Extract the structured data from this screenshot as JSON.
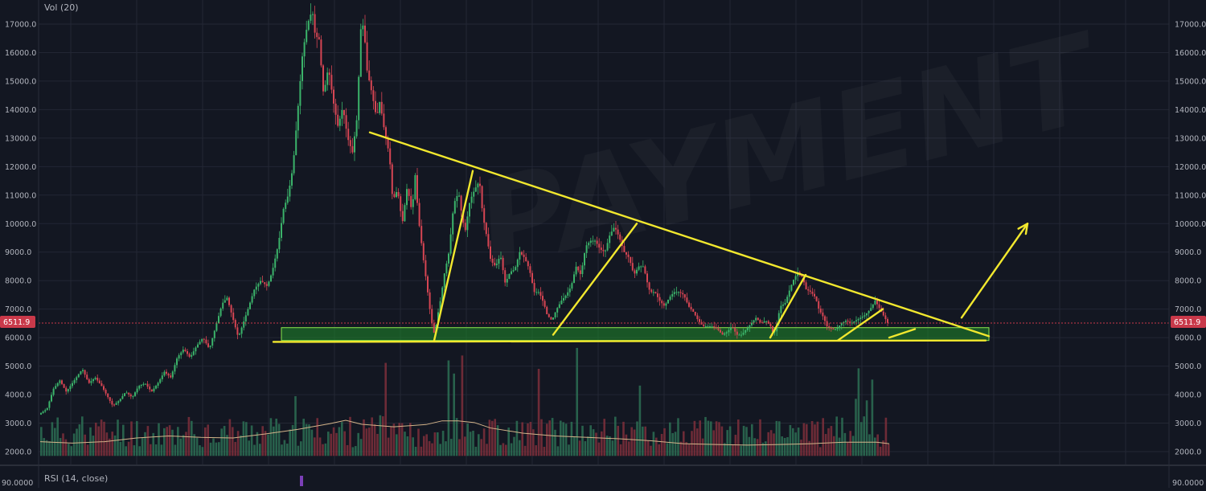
{
  "pane_labels": {
    "volume": "Vol (20)",
    "rsi": "RSI (14, close)"
  },
  "price_axis": {
    "ticks": [
      "17000.0",
      "16000.0",
      "15000.0",
      "14000.0",
      "13000.0",
      "12000.0",
      "11000.0",
      "10000.0",
      "9000.0",
      "8000.0",
      "7000.0",
      "6000.0",
      "5000.0",
      "4000.0",
      "3000.0",
      "2000.0"
    ],
    "rsi_tick": "90.0000",
    "current_price_label": "6511.9"
  },
  "watermark": {
    "text": "PAYMENT"
  },
  "colors": {
    "background": "#131722",
    "grid": "#232734",
    "up": "#3bb36a",
    "down": "#d64553",
    "volume_up": "#2d6e54",
    "volume_down": "#7e2f3b",
    "trendline": "#f2e82e",
    "support_zone": "#1f8a2a",
    "support_zone_border": "#8ce84e",
    "price_line": "#c9394a",
    "axis_text": "#b2b5be",
    "volume_ma": "#d4b48a"
  },
  "chart_data": {
    "type": "candlestick",
    "title": "",
    "xlabel": "",
    "ylabel": "",
    "ylim": [
      1700,
      17600
    ],
    "grid": true,
    "current_price": 6511.9,
    "price_path": [
      [
        0,
        3300
      ],
      [
        10,
        3500
      ],
      [
        18,
        4200
      ],
      [
        26,
        4500
      ],
      [
        34,
        4100
      ],
      [
        44,
        4500
      ],
      [
        54,
        4900
      ],
      [
        62,
        4400
      ],
      [
        70,
        4600
      ],
      [
        78,
        4300
      ],
      [
        86,
        3900
      ],
      [
        92,
        3600
      ],
      [
        100,
        3800
      ],
      [
        108,
        4100
      ],
      [
        116,
        3900
      ],
      [
        124,
        4300
      ],
      [
        132,
        4400
      ],
      [
        140,
        4100
      ],
      [
        148,
        4400
      ],
      [
        156,
        4800
      ],
      [
        164,
        4600
      ],
      [
        172,
        5300
      ],
      [
        180,
        5600
      ],
      [
        188,
        5300
      ],
      [
        196,
        5700
      ],
      [
        204,
        6000
      ],
      [
        212,
        5600
      ],
      [
        220,
        6400
      ],
      [
        228,
        7200
      ],
      [
        234,
        7400
      ],
      [
        240,
        6800
      ],
      [
        248,
        6000
      ],
      [
        254,
        6500
      ],
      [
        260,
        7000
      ],
      [
        268,
        7700
      ],
      [
        276,
        8000
      ],
      [
        284,
        7800
      ],
      [
        290,
        8300
      ],
      [
        298,
        9300
      ],
      [
        304,
        10500
      ],
      [
        310,
        11000
      ],
      [
        316,
        12000
      ],
      [
        322,
        14000
      ],
      [
        328,
        16000
      ],
      [
        334,
        17000
      ],
      [
        340,
        17500
      ],
      [
        344,
        16500
      ],
      [
        348,
        16600
      ],
      [
        354,
        14500
      ],
      [
        360,
        15500
      ],
      [
        366,
        14300
      ],
      [
        372,
        13400
      ],
      [
        378,
        14100
      ],
      [
        384,
        13000
      ],
      [
        390,
        12500
      ],
      [
        396,
        13800
      ],
      [
        400,
        16800
      ],
      [
        404,
        17000
      ],
      [
        408,
        15400
      ],
      [
        414,
        14600
      ],
      [
        420,
        13700
      ],
      [
        424,
        14300
      ],
      [
        430,
        13200
      ],
      [
        436,
        12400
      ],
      [
        440,
        10800
      ],
      [
        446,
        11200
      ],
      [
        452,
        10000
      ],
      [
        458,
        11300
      ],
      [
        464,
        10400
      ],
      [
        468,
        11700
      ],
      [
        472,
        10200
      ],
      [
        478,
        8800
      ],
      [
        484,
        7500
      ],
      [
        488,
        6600
      ],
      [
        492,
        6100
      ],
      [
        496,
        6800
      ],
      [
        500,
        7400
      ],
      [
        504,
        8200
      ],
      [
        510,
        9000
      ],
      [
        516,
        10700
      ],
      [
        522,
        11100
      ],
      [
        526,
        10300
      ],
      [
        530,
        9700
      ],
      [
        536,
        10800
      ],
      [
        542,
        11200
      ],
      [
        548,
        11500
      ],
      [
        552,
        10300
      ],
      [
        556,
        9700
      ],
      [
        562,
        8700
      ],
      [
        568,
        8500
      ],
      [
        574,
        8900
      ],
      [
        580,
        7900
      ],
      [
        586,
        8300
      ],
      [
        592,
        8400
      ],
      [
        598,
        9000
      ],
      [
        604,
        8800
      ],
      [
        610,
        8400
      ],
      [
        616,
        7600
      ],
      [
        622,
        7600
      ],
      [
        628,
        7200
      ],
      [
        632,
        6800
      ],
      [
        638,
        6600
      ],
      [
        644,
        7000
      ],
      [
        650,
        7300
      ],
      [
        656,
        7500
      ],
      [
        662,
        7800
      ],
      [
        668,
        8500
      ],
      [
        674,
        8200
      ],
      [
        680,
        9200
      ],
      [
        686,
        9400
      ],
      [
        692,
        9400
      ],
      [
        698,
        9100
      ],
      [
        704,
        9000
      ],
      [
        710,
        9600
      ],
      [
        716,
        9900
      ],
      [
        722,
        9500
      ],
      [
        728,
        9000
      ],
      [
        734,
        8800
      ],
      [
        740,
        8200
      ],
      [
        746,
        8500
      ],
      [
        752,
        8500
      ],
      [
        756,
        8000
      ],
      [
        760,
        7600
      ],
      [
        766,
        7600
      ],
      [
        772,
        7300
      ],
      [
        778,
        7100
      ],
      [
        784,
        7400
      ],
      [
        790,
        7600
      ],
      [
        796,
        7600
      ],
      [
        802,
        7500
      ],
      [
        808,
        7100
      ],
      [
        814,
        6900
      ],
      [
        820,
        6600
      ],
      [
        826,
        6400
      ],
      [
        832,
        6400
      ],
      [
        838,
        6400
      ],
      [
        844,
        6300
      ],
      [
        850,
        6100
      ],
      [
        856,
        6200
      ],
      [
        862,
        6400
      ],
      [
        868,
        6100
      ],
      [
        874,
        6100
      ],
      [
        880,
        6300
      ],
      [
        886,
        6500
      ],
      [
        892,
        6700
      ],
      [
        898,
        6500
      ],
      [
        904,
        6600
      ],
      [
        910,
        6400
      ],
      [
        914,
        6100
      ],
      [
        918,
        6500
      ],
      [
        922,
        7100
      ],
      [
        928,
        7200
      ],
      [
        934,
        7700
      ],
      [
        938,
        8000
      ],
      [
        944,
        8300
      ],
      [
        950,
        8100
      ],
      [
        954,
        7700
      ],
      [
        960,
        7600
      ],
      [
        966,
        7400
      ],
      [
        970,
        7000
      ],
      [
        976,
        6700
      ],
      [
        980,
        6400
      ],
      [
        986,
        6300
      ],
      [
        992,
        6300
      ],
      [
        998,
        6500
      ],
      [
        1004,
        6600
      ],
      [
        1010,
        6500
      ],
      [
        1016,
        6600
      ],
      [
        1022,
        6700
      ],
      [
        1028,
        6800
      ],
      [
        1034,
        7000
      ],
      [
        1040,
        7300
      ],
      [
        1046,
        7000
      ],
      [
        1052,
        6700
      ],
      [
        1056,
        6500
      ]
    ],
    "volume_ma_path": [
      [
        0,
        2350
      ],
      [
        40,
        2300
      ],
      [
        80,
        2350
      ],
      [
        120,
        2480
      ],
      [
        160,
        2550
      ],
      [
        200,
        2500
      ],
      [
        240,
        2480
      ],
      [
        280,
        2620
      ],
      [
        320,
        2780
      ],
      [
        360,
        2980
      ],
      [
        380,
        3100
      ],
      [
        400,
        2960
      ],
      [
        440,
        2870
      ],
      [
        480,
        2950
      ],
      [
        500,
        3080
      ],
      [
        520,
        3080
      ],
      [
        540,
        3020
      ],
      [
        560,
        2830
      ],
      [
        600,
        2650
      ],
      [
        640,
        2550
      ],
      [
        680,
        2500
      ],
      [
        720,
        2450
      ],
      [
        760,
        2380
      ],
      [
        800,
        2280
      ],
      [
        840,
        2250
      ],
      [
        880,
        2230
      ],
      [
        920,
        2250
      ],
      [
        960,
        2280
      ],
      [
        1000,
        2330
      ],
      [
        1040,
        2330
      ],
      [
        1056,
        2280
      ]
    ],
    "trendlines": [
      {
        "from": [
          410,
          13200
        ],
        "to": [
          1180,
          6050
        ]
      },
      {
        "from": [
          290,
          5850
        ],
        "to": [
          1176,
          5900
        ]
      },
      {
        "from": [
          490,
          5900
        ],
        "to": [
          538,
          11850
        ]
      },
      {
        "from": [
          638,
          6100
        ],
        "to": [
          742,
          10000
        ]
      },
      {
        "from": [
          908,
          6000
        ],
        "to": [
          952,
          8200
        ]
      },
      {
        "from": [
          992,
          5900
        ],
        "to": [
          1048,
          7000
        ]
      },
      {
        "from": [
          1056,
          6000
        ],
        "to": [
          1088,
          6300
        ]
      }
    ],
    "projection_arrow": {
      "from": [
        1146,
        6700
      ],
      "to": [
        1228,
        10000
      ]
    },
    "support_zone": {
      "x_start": 300,
      "x_end": 1180,
      "price_low": 5900,
      "price_high": 6350
    }
  }
}
